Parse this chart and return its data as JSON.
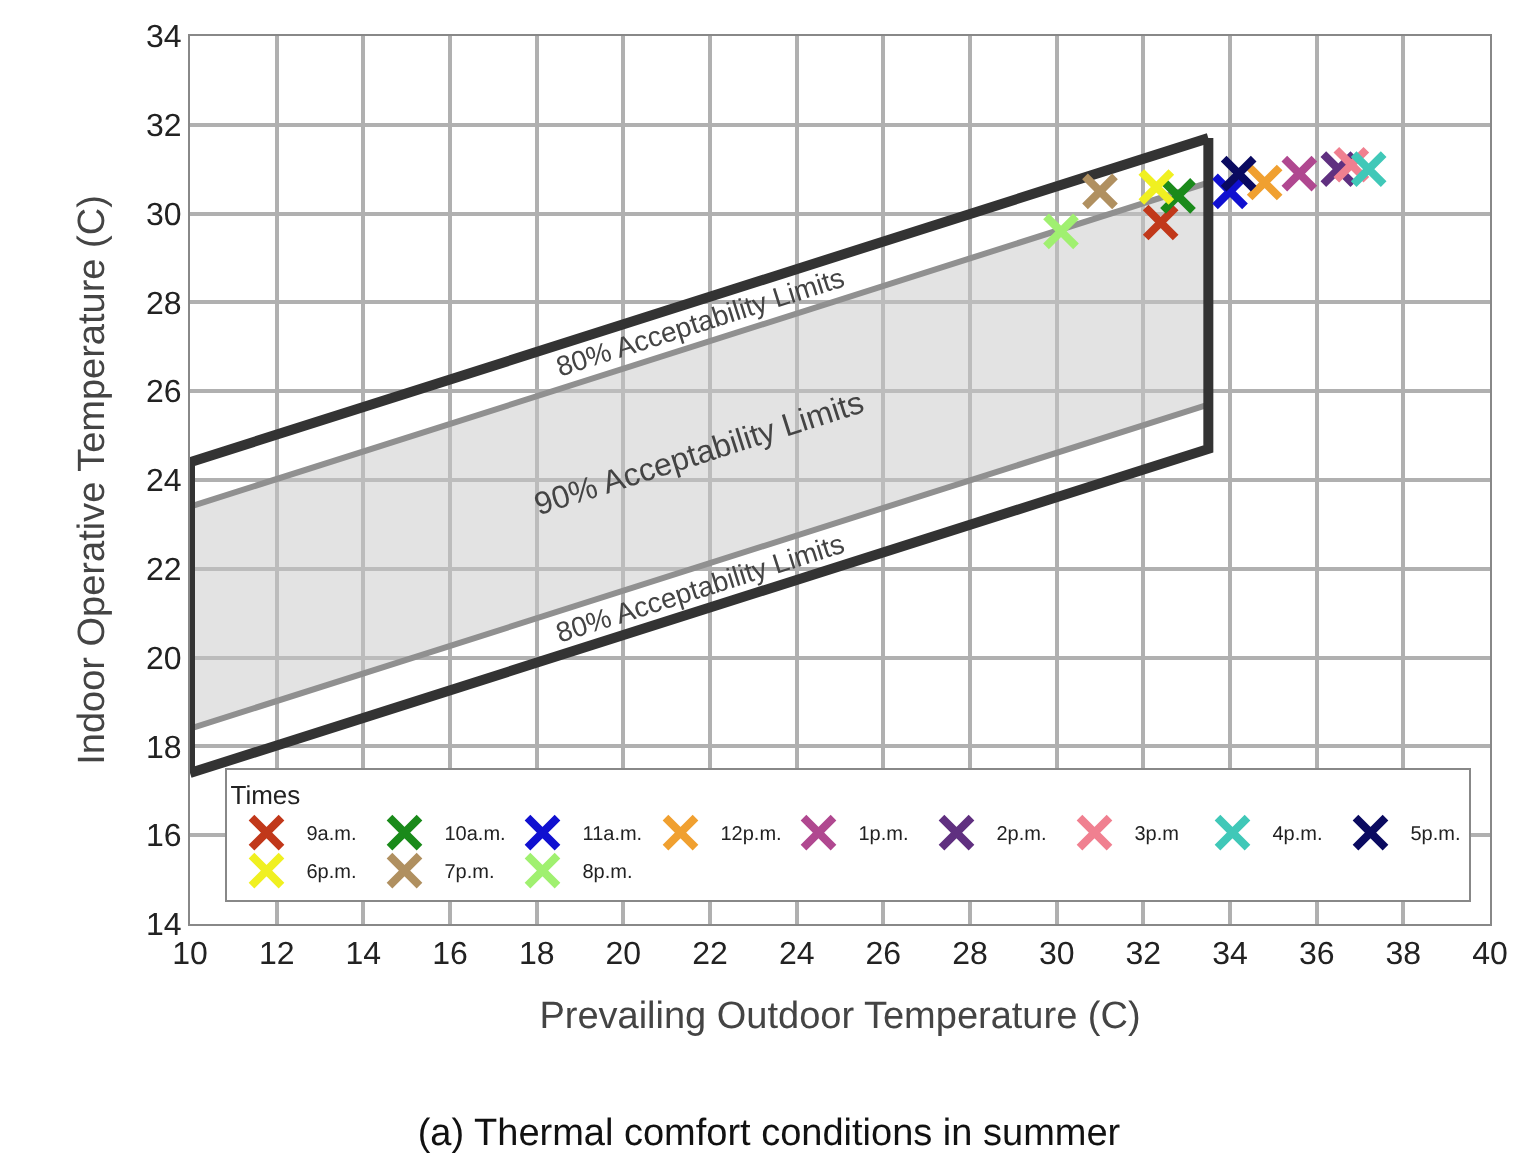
{
  "chart_data": {
    "type": "scatter",
    "title": "(a) Thermal comfort conditions in summer",
    "xlabel": "Prevailing Outdoor Temperature (C)",
    "ylabel": "Indoor Operative Temperature (C)",
    "legend_title": "Times",
    "xlim": [
      10,
      40
    ],
    "xticks": [
      10,
      12,
      14,
      16,
      18,
      20,
      22,
      24,
      26,
      28,
      30,
      32,
      34,
      36,
      38,
      40
    ],
    "ylim": [
      14,
      34
    ],
    "yticks": [
      14,
      16,
      18,
      20,
      22,
      24,
      26,
      28,
      30,
      32,
      34
    ],
    "grid": true,
    "legend": "bottom right",
    "marker": "cross",
    "series": [
      {
        "type": "area",
        "marker": "none",
        "color": "#909090",
        "x": [
          10,
          33.5,
          33.5,
          10,
          10
        ],
        "values": [
          23.4,
          30.7,
          25.7,
          18.4,
          23.4
        ]
      },
      {
        "type": "line",
        "marker": "none",
        "color": "#333333",
        "x": [
          10,
          10,
          33.5
        ],
        "values": [
          17.4,
          24.4,
          31.7
        ]
      },
      {
        "type": "line",
        "marker": "none",
        "color": "#333333",
        "x": [
          10,
          33.5,
          33.5
        ],
        "values": [
          17.4,
          24.7,
          31.7
        ]
      },
      {
        "name": "9a.m.",
        "color": "#c1381a",
        "x": [
          32.4
        ],
        "values": [
          29.8
        ]
      },
      {
        "name": "10a.m.",
        "color": "#1a8a1a",
        "x": [
          32.8
        ],
        "values": [
          30.4
        ]
      },
      {
        "name": "11a.m.",
        "color": "#1010d0",
        "x": [
          34.0
        ],
        "values": [
          30.5
        ]
      },
      {
        "name": "12p.m.",
        "color": "#f0a030",
        "x": [
          34.8
        ],
        "values": [
          30.7
        ]
      },
      {
        "name": "1p.m.",
        "color": "#b04890",
        "x": [
          35.6
        ],
        "values": [
          30.9
        ]
      },
      {
        "name": "2p.m.",
        "color": "#603080",
        "x": [
          36.5
        ],
        "values": [
          31.0
        ]
      },
      {
        "name": "3p.m",
        "color": "#f08090",
        "x": [
          36.8
        ],
        "values": [
          31.1
        ]
      },
      {
        "name": "4p.m.",
        "color": "#40c8b8",
        "x": [
          37.2
        ],
        "values": [
          31.0
        ]
      },
      {
        "name": "5p.m.",
        "color": "#0a0a60",
        "x": [
          34.2
        ],
        "values": [
          30.9
        ]
      },
      {
        "name": "6p.m.",
        "color": "#f0f020",
        "x": [
          32.3
        ],
        "values": [
          30.6
        ]
      },
      {
        "name": "7p.m.",
        "color": "#b09060",
        "x": [
          31.0
        ],
        "values": [
          30.5
        ]
      },
      {
        "name": "8p.m.",
        "color": "#a0f070",
        "x": [
          30.1
        ],
        "values": [
          29.6
        ]
      }
    ],
    "annotations": [
      "80% Acceptability Limits",
      "90% Acceptability Limits",
      "80% Acceptability Limits"
    ]
  }
}
